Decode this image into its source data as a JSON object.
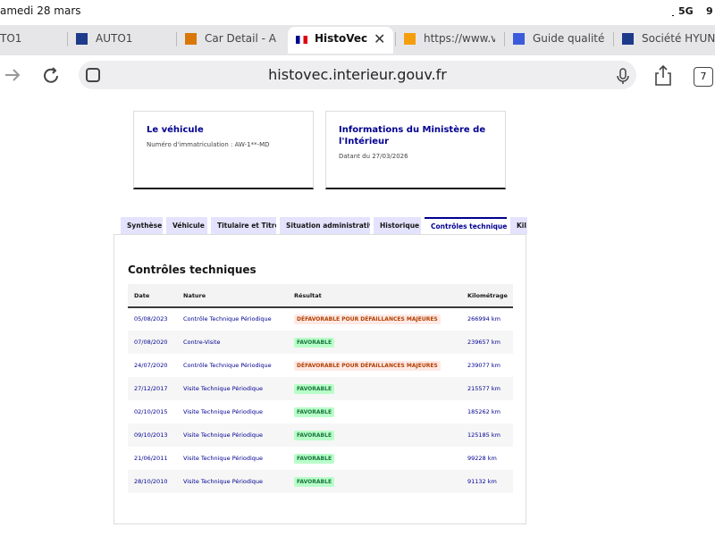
{
  "status_bar": {
    "date": "amedi 28 mars",
    "network": "5G",
    "battery": "9"
  },
  "browser": {
    "tabs": [
      "TO1",
      "AUTO1",
      "Car Detail - Ad",
      "HistoVec -",
      "https://www.ve",
      "Guide qualité -",
      "Société HYUN"
    ],
    "active_tab": 3,
    "address": "histovec.interieur.gouv.fr",
    "tab_count": "7"
  },
  "cards": [
    {
      "title": "Le véhicule",
      "text": "Numéro d'immatriculation : AW-1**-MD"
    },
    {
      "title": "Informations du Ministère de l'Intérieur",
      "text": "Datant du 27/03/2026"
    }
  ],
  "nav_tabs": {
    "items": [
      "Synthèse",
      "Véhicule",
      "Titulaire et Titre",
      "Situation administrative",
      "Historique",
      "Contrôles techniques",
      "Kil"
    ],
    "active": 5
  },
  "section": {
    "title": "Contrôles techniques"
  },
  "table": {
    "headers": [
      "Date",
      "Nature",
      "Résultat",
      "Kilométrage"
    ],
    "rows": [
      [
        "05/08/2023",
        "Contrôle Technique Périodique",
        "DÉFAVORABLE POUR DÉFAILLANCES MAJEURES",
        "266994 km"
      ],
      [
        "07/08/2020",
        "Contre-Visite",
        "FAVORABLE",
        "239657 km"
      ],
      [
        "24/07/2020",
        "Contrôle Technique Périodique",
        "DÉFAVORABLE POUR DÉFAILLANCES MAJEURES",
        "239077 km"
      ],
      [
        "27/12/2017",
        "Visite Technique Périodique",
        "FAVORABLE",
        "215577 km"
      ],
      [
        "02/10/2015",
        "Visite Technique Périodique",
        "FAVORABLE",
        "185262 km"
      ],
      [
        "09/10/2013",
        "Visite Technique Périodique",
        "FAVORABLE",
        "125185 km"
      ],
      [
        "21/06/2011",
        "Visite Technique Périodique",
        "FAVORABLE",
        "99228 km"
      ],
      [
        "28/10/2010",
        "Visite Technique Périodique",
        "FAVORABLE",
        "91132 km"
      ]
    ]
  }
}
